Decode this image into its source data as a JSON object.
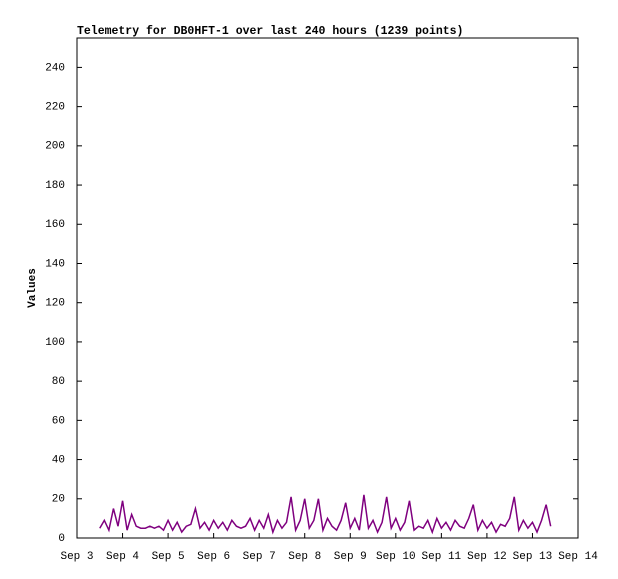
{
  "chart_data": {
    "type": "line",
    "title": "Telemetry for DB0HFT-1 over last 240 hours (1239 points)",
    "y_label": "Values",
    "x": [
      3.5,
      3.6,
      3.7,
      3.8,
      3.9,
      4.0,
      4.1,
      4.2,
      4.3,
      4.4,
      4.5,
      4.6,
      4.7,
      4.8,
      4.9,
      5.0,
      5.1,
      5.2,
      5.3,
      5.4,
      5.5,
      5.6,
      5.7,
      5.8,
      5.9,
      6.0,
      6.1,
      6.2,
      6.3,
      6.4,
      6.5,
      6.6,
      6.7,
      6.8,
      6.9,
      7.0,
      7.1,
      7.2,
      7.3,
      7.4,
      7.5,
      7.6,
      7.7,
      7.8,
      7.9,
      8.0,
      8.1,
      8.2,
      8.3,
      8.4,
      8.5,
      8.6,
      8.7,
      8.8,
      8.9,
      9.0,
      9.1,
      9.2,
      9.3,
      9.4,
      9.5,
      9.6,
      9.7,
      9.8,
      9.9,
      10.0,
      10.1,
      10.2,
      10.3,
      10.4,
      10.5,
      10.6,
      10.7,
      10.8,
      10.9,
      11.0,
      11.1,
      11.2,
      11.3,
      11.4,
      11.5,
      11.6,
      11.7,
      11.8,
      11.9,
      12.0,
      12.1,
      12.2,
      12.3,
      12.4,
      12.5,
      12.6,
      12.7,
      12.8,
      12.9,
      13.0,
      13.1,
      13.2,
      13.3,
      13.4
    ],
    "series": [
      {
        "color": "#7f007f",
        "values": [
          5,
          9,
          4,
          15,
          6,
          19,
          4,
          12,
          6,
          5,
          5,
          6,
          5,
          6,
          4,
          9,
          4,
          8,
          3,
          6,
          7,
          15,
          5,
          8,
          4,
          9,
          5,
          8,
          4,
          9,
          6,
          5,
          6,
          10,
          4,
          9,
          5,
          12,
          3,
          9,
          5,
          8,
          21,
          4,
          9,
          20,
          5,
          9,
          20,
          4,
          10,
          6,
          4,
          9,
          18,
          5,
          10,
          4,
          22,
          5,
          9,
          3,
          8,
          21,
          5,
          10,
          4,
          8,
          19,
          4,
          6,
          5,
          9,
          3,
          10,
          5,
          8,
          4,
          9,
          6,
          5,
          10,
          17,
          4,
          9,
          5,
          8,
          3,
          7,
          6,
          10,
          21,
          4,
          9,
          5,
          8,
          3,
          9,
          17,
          6
        ]
      }
    ],
    "xlim": [
      3,
      14
    ],
    "xticks": [
      {
        "value": 3,
        "label": "Sep 3"
      },
      {
        "value": 4,
        "label": "Sep 4"
      },
      {
        "value": 5,
        "label": "Sep 5"
      },
      {
        "value": 6,
        "label": "Sep 6"
      },
      {
        "value": 7,
        "label": "Sep 7"
      },
      {
        "value": 8,
        "label": "Sep 8"
      },
      {
        "value": 9,
        "label": "Sep 9"
      },
      {
        "value": 10,
        "label": "Sep 10"
      },
      {
        "value": 11,
        "label": "Sep 11"
      },
      {
        "value": 12,
        "label": "Sep 12"
      },
      {
        "value": 13,
        "label": "Sep 13"
      },
      {
        "value": 14,
        "label": "Sep 14"
      }
    ],
    "ylim": [
      0,
      255
    ],
    "yticks": [
      0,
      20,
      40,
      60,
      80,
      100,
      120,
      140,
      160,
      180,
      200,
      220,
      240
    ]
  }
}
